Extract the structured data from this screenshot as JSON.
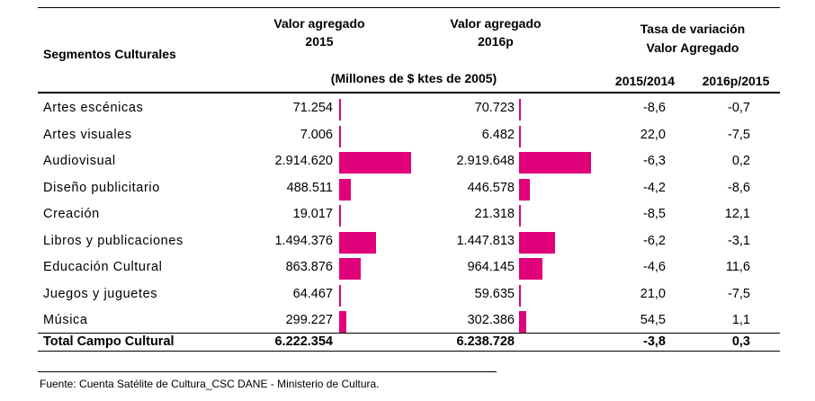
{
  "header": {
    "segment_col": "Segmentos Culturales",
    "va2015_line1": "Valor agregado",
    "va2015_line2": "2015",
    "va2016_line1": "Valor agregado",
    "va2016_line2": "2016p",
    "rate_line1": "Tasa de variación",
    "rate_line2": "Valor Agregado",
    "units": "(Millones de $ ktes de 2005)",
    "rate_col1": "2015/2014",
    "rate_col2": "2016p/2015"
  },
  "rows": [
    {
      "label": "Artes escénicas",
      "v2015": "71.254",
      "v2016": "70.723",
      "r1": "-8,6",
      "r2": "-0,7",
      "bar2015": 71254,
      "bar2016": 70723
    },
    {
      "label": "Artes visuales",
      "v2015": "7.006",
      "v2016": "6.482",
      "r1": "22,0",
      "r2": "-7,5",
      "bar2015": 7006,
      "bar2016": 6482
    },
    {
      "label": "Audiovisual",
      "v2015": "2.914.620",
      "v2016": "2.919.648",
      "r1": "-6,3",
      "r2": "0,2",
      "bar2015": 2914620,
      "bar2016": 2919648
    },
    {
      "label": "Diseño publicitario",
      "v2015": "488.511",
      "v2016": "446.578",
      "r1": "-4,2",
      "r2": "-8,6",
      "bar2015": 488511,
      "bar2016": 446578
    },
    {
      "label": "Creación",
      "v2015": "19.017",
      "v2016": "21.318",
      "r1": "-8,5",
      "r2": "12,1",
      "bar2015": 19017,
      "bar2016": 21318
    },
    {
      "label": "Libros y publicaciones",
      "v2015": "1.494.376",
      "v2016": "1.447.813",
      "r1": "-6,2",
      "r2": "-3,1",
      "bar2015": 1494376,
      "bar2016": 1447813
    },
    {
      "label": "Educación Cultural",
      "v2015": "863.876",
      "v2016": "964.145",
      "r1": "-4,6",
      "r2": "11,6",
      "bar2015": 863876,
      "bar2016": 964145
    },
    {
      "label": "Juegos y juguetes",
      "v2015": "64.467",
      "v2016": "59.635",
      "r1": "21,0",
      "r2": "-7,5",
      "bar2015": 64467,
      "bar2016": 59635
    },
    {
      "label": "Música",
      "v2015": "299.227",
      "v2016": "302.386",
      "r1": "54,5",
      "r2": "1,1",
      "bar2015": 299227,
      "bar2016": 302386
    }
  ],
  "total": {
    "label": "Total Campo Cultural",
    "v2015": "6.222.354",
    "v2016": "6.238.728",
    "r1": "-3,8",
    "r2": "0,3"
  },
  "footer": "Fuente:  Cuenta Satélite de Cultura_CSC DANE - Ministerio de Cultura.",
  "colors": {
    "bar": "#e0007a"
  }
}
